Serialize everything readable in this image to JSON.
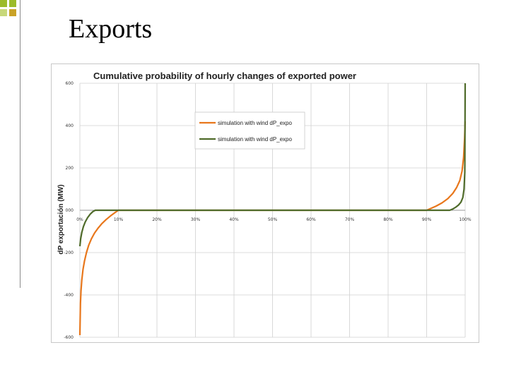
{
  "slide": {
    "title": "Exports"
  },
  "colors": {
    "series1": "#e8771c",
    "series2": "#4f6b2a",
    "grid": "#d0d0d0"
  },
  "chart_data": {
    "type": "line",
    "title": "Cumulative probability of  hourly changes of exported power",
    "xlabel": "",
    "ylabel": "dP exportación (MW)",
    "xlim": [
      0,
      100
    ],
    "ylim": [
      -600,
      600
    ],
    "x_ticks": [
      "0%",
      "10%",
      "20%",
      "30%",
      "40%",
      "50%",
      "60%",
      "70%",
      "80%",
      "90%",
      "100%"
    ],
    "y_ticks": [
      "600",
      "400",
      "200",
      "000",
      "-200",
      "-400",
      "-600"
    ],
    "grid": true,
    "legend_position": "top-center",
    "series": [
      {
        "name": "simulation with wind dP_expo",
        "color": "#e8771c",
        "x": [
          0,
          0.15,
          0.3,
          0.5,
          0.8,
          1.2,
          1.7,
          2.3,
          3,
          3.8,
          4.7,
          5.7,
          6.8,
          8,
          9.2,
          10,
          50,
          90,
          91,
          92.5,
          94,
          95.5,
          96.8,
          97.8,
          98.6,
          99.2,
          99.6,
          99.85,
          100
        ],
        "y": [
          -590,
          -440,
          -380,
          -330,
          -280,
          -240,
          -200,
          -165,
          -135,
          -108,
          -85,
          -63,
          -44,
          -26,
          -10,
          0,
          0,
          0,
          8,
          20,
          35,
          55,
          80,
          108,
          140,
          185,
          250,
          340,
          420
        ]
      },
      {
        "name": "simulation with wind dP_expo",
        "color": "#4f6b2a",
        "x": [
          0,
          0.2,
          0.5,
          0.9,
          1.4,
          2,
          2.7,
          3.4,
          4,
          50,
          96,
          96.8,
          97.6,
          98.3,
          98.9,
          99.4,
          99.7,
          99.9,
          100
        ],
        "y": [
          -170,
          -135,
          -105,
          -78,
          -55,
          -35,
          -18,
          -6,
          0,
          0,
          0,
          6,
          15,
          25,
          38,
          60,
          100,
          180,
          600
        ]
      }
    ]
  }
}
